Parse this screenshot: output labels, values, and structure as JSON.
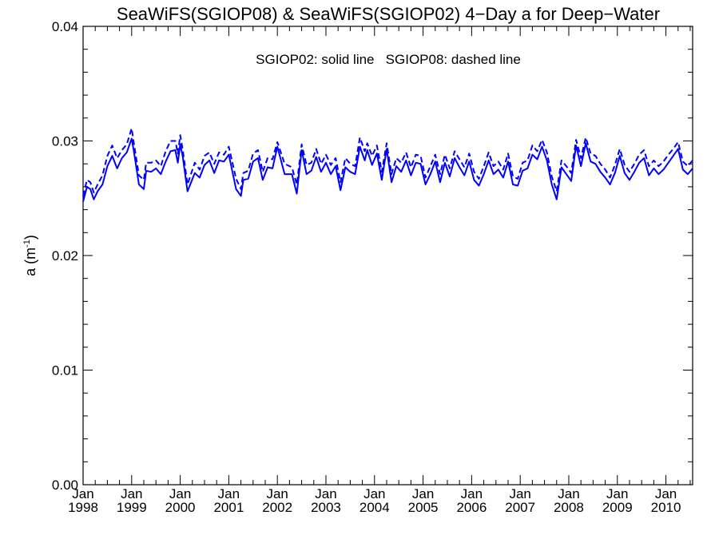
{
  "chart_data": {
    "type": "line",
    "title": "SeaWiFS(SGIOP08) & SeaWiFS(SGIOP02) 4−Day a for Deep−Water",
    "ylabel_base": "a (m",
    "ylabel_sup": "-1",
    "ylabel_close": ")",
    "xlabel": "",
    "annotation": "SGIOP02: solid line   SGIOP08: dashed line",
    "xlim": [
      1998.0,
      2010.55
    ],
    "ylim": [
      0.0,
      0.04
    ],
    "y_ticks": [
      {
        "value": 0.0,
        "label": "0.00"
      },
      {
        "value": 0.01,
        "label": "0.01"
      },
      {
        "value": 0.02,
        "label": "0.02"
      },
      {
        "value": 0.03,
        "label": "0.03"
      },
      {
        "value": 0.04,
        "label": "0.04"
      }
    ],
    "x_ticks": [
      {
        "value": 1998,
        "label1": "Jan",
        "label2": "1998"
      },
      {
        "value": 1999,
        "label1": "Jan",
        "label2": "1999"
      },
      {
        "value": 2000,
        "label1": "Jan",
        "label2": "2000"
      },
      {
        "value": 2001,
        "label1": "Jan",
        "label2": "2001"
      },
      {
        "value": 2002,
        "label1": "Jan",
        "label2": "2002"
      },
      {
        "value": 2003,
        "label1": "Jan",
        "label2": "2003"
      },
      {
        "value": 2004,
        "label1": "Jan",
        "label2": "2004"
      },
      {
        "value": 2005,
        "label1": "Jan",
        "label2": "2005"
      },
      {
        "value": 2006,
        "label1": "Jan",
        "label2": "2006"
      },
      {
        "value": 2007,
        "label1": "Jan",
        "label2": "2007"
      },
      {
        "value": 2008,
        "label1": "Jan",
        "label2": "2008"
      },
      {
        "value": 2009,
        "label1": "Jan",
        "label2": "2009"
      },
      {
        "value": 2010,
        "label1": "Jan",
        "label2": "2010"
      }
    ],
    "line_color": "#0000ff",
    "series": [
      {
        "style": "solid",
        "x": [
          1998.0,
          1998.08,
          1998.15,
          1998.22,
          1998.3,
          1998.4,
          1998.5,
          1998.6,
          1998.7,
          1998.8,
          1998.9,
          1999.0,
          1999.05,
          1999.15,
          1999.25,
          1999.3,
          1999.4,
          1999.5,
          1999.6,
          1999.7,
          1999.8,
          1999.9,
          1999.95,
          2000.0,
          2000.05,
          2000.15,
          2000.3,
          2000.4,
          2000.5,
          2000.6,
          2000.7,
          2000.8,
          2000.9,
          2001.0,
          2001.15,
          2001.25,
          2001.3,
          2001.4,
          2001.5,
          2001.6,
          2001.7,
          2001.8,
          2001.9,
          2002.0,
          2002.15,
          2002.3,
          2002.4,
          2002.5,
          2002.6,
          2002.7,
          2002.8,
          2002.9,
          2003.0,
          2003.1,
          2003.2,
          2003.3,
          2003.4,
          2003.5,
          2003.6,
          2003.7,
          2003.8,
          2003.85,
          2003.95,
          2004.05,
          2004.15,
          2004.25,
          2004.35,
          2004.45,
          2004.55,
          2004.65,
          2004.75,
          2004.85,
          2004.95,
          2005.05,
          2005.15,
          2005.25,
          2005.35,
          2005.45,
          2005.55,
          2005.65,
          2005.75,
          2005.85,
          2005.95,
          2006.05,
          2006.15,
          2006.25,
          2006.35,
          2006.45,
          2006.55,
          2006.65,
          2006.75,
          2006.85,
          2006.95,
          2007.05,
          2007.15,
          2007.25,
          2007.35,
          2007.45,
          2007.55,
          2007.65,
          2007.75,
          2007.85,
          2007.95,
          2008.05,
          2008.15,
          2008.25,
          2008.35,
          2008.45,
          2008.55,
          2008.65,
          2008.75,
          2008.85,
          2008.95,
          2009.05,
          2009.15,
          2009.25,
          2009.35,
          2009.45,
          2009.55,
          2009.65,
          2009.75,
          2009.85,
          2009.95,
          2010.05,
          2010.15,
          2010.25,
          2010.35,
          2010.45,
          2010.55
        ],
        "y": [
          0.0247,
          0.026,
          0.0258,
          0.0249,
          0.0256,
          0.0262,
          0.0278,
          0.0287,
          0.0276,
          0.0285,
          0.029,
          0.0302,
          0.029,
          0.0262,
          0.0258,
          0.0274,
          0.0273,
          0.0276,
          0.0271,
          0.0282,
          0.0291,
          0.0292,
          0.0281,
          0.0297,
          0.0287,
          0.0256,
          0.0272,
          0.0268,
          0.0279,
          0.0283,
          0.0272,
          0.0283,
          0.0282,
          0.0288,
          0.0258,
          0.0252,
          0.0266,
          0.0267,
          0.0282,
          0.0285,
          0.0266,
          0.0277,
          0.0276,
          0.0295,
          0.0271,
          0.0271,
          0.0254,
          0.0292,
          0.0271,
          0.0274,
          0.0286,
          0.0273,
          0.0281,
          0.0271,
          0.0278,
          0.0257,
          0.0277,
          0.0273,
          0.0271,
          0.0295,
          0.0283,
          0.0292,
          0.0279,
          0.0289,
          0.0266,
          0.0293,
          0.0264,
          0.0278,
          0.0273,
          0.0283,
          0.027,
          0.0281,
          0.028,
          0.0262,
          0.0271,
          0.0282,
          0.0264,
          0.0281,
          0.0269,
          0.0285,
          0.0277,
          0.027,
          0.0282,
          0.0266,
          0.0261,
          0.0271,
          0.0283,
          0.0271,
          0.0275,
          0.0268,
          0.0282,
          0.0262,
          0.0261,
          0.0274,
          0.0276,
          0.0288,
          0.0284,
          0.0295,
          0.0283,
          0.0262,
          0.0249,
          0.0277,
          0.0271,
          0.0265,
          0.0296,
          0.0278,
          0.0298,
          0.0282,
          0.028,
          0.0273,
          0.0268,
          0.0262,
          0.0272,
          0.0287,
          0.0272,
          0.0266,
          0.0273,
          0.0281,
          0.0285,
          0.027,
          0.0276,
          0.0271,
          0.0275,
          0.0281,
          0.0287,
          0.0293,
          0.0275,
          0.0271,
          0.0276
        ],
        "x_note": "x values in decimal years"
      },
      {
        "style": "dashed",
        "x": [
          1998.0,
          1998.08,
          1998.15,
          1998.22,
          1998.3,
          1998.4,
          1998.5,
          1998.6,
          1998.7,
          1998.8,
          1998.9,
          1999.0,
          1999.05,
          1999.15,
          1999.25,
          1999.3,
          1999.4,
          1999.5,
          1999.6,
          1999.7,
          1999.8,
          1999.9,
          1999.95,
          2000.0,
          2000.05,
          2000.15,
          2000.3,
          2000.4,
          2000.5,
          2000.6,
          2000.7,
          2000.8,
          2000.9,
          2001.0,
          2001.15,
          2001.25,
          2001.3,
          2001.4,
          2001.5,
          2001.6,
          2001.7,
          2001.8,
          2001.9,
          2002.0,
          2002.15,
          2002.3,
          2002.4,
          2002.5,
          2002.6,
          2002.7,
          2002.8,
          2002.9,
          2003.0,
          2003.1,
          2003.2,
          2003.3,
          2003.4,
          2003.5,
          2003.6,
          2003.7,
          2003.8,
          2003.85,
          2003.95,
          2004.05,
          2004.15,
          2004.25,
          2004.35,
          2004.45,
          2004.55,
          2004.65,
          2004.75,
          2004.85,
          2004.95,
          2005.05,
          2005.15,
          2005.25,
          2005.35,
          2005.45,
          2005.55,
          2005.65,
          2005.75,
          2005.85,
          2005.95,
          2006.05,
          2006.15,
          2006.25,
          2006.35,
          2006.45,
          2006.55,
          2006.65,
          2006.75,
          2006.85,
          2006.95,
          2007.05,
          2007.15,
          2007.25,
          2007.35,
          2007.45,
          2007.55,
          2007.65,
          2007.75,
          2007.85,
          2007.95,
          2008.05,
          2008.15,
          2008.25,
          2008.35,
          2008.45,
          2008.55,
          2008.65,
          2008.75,
          2008.85,
          2008.95,
          2009.05,
          2009.15,
          2009.25,
          2009.35,
          2009.45,
          2009.55,
          2009.65,
          2009.75,
          2009.85,
          2009.95,
          2010.05,
          2010.15,
          2010.25,
          2010.35,
          2010.45,
          2010.55
        ],
        "y": [
          0.0252,
          0.0266,
          0.0264,
          0.0255,
          0.0262,
          0.027,
          0.0287,
          0.0296,
          0.0285,
          0.0292,
          0.0297,
          0.0311,
          0.0297,
          0.027,
          0.0266,
          0.0281,
          0.0281,
          0.0283,
          0.0278,
          0.0291,
          0.03,
          0.03,
          0.0289,
          0.0305,
          0.0293,
          0.0262,
          0.0281,
          0.0275,
          0.0287,
          0.029,
          0.028,
          0.029,
          0.0288,
          0.0295,
          0.0267,
          0.0258,
          0.0272,
          0.0274,
          0.0289,
          0.0292,
          0.0273,
          0.0285,
          0.0284,
          0.0299,
          0.028,
          0.0277,
          0.0262,
          0.0297,
          0.0279,
          0.0281,
          0.0293,
          0.028,
          0.0288,
          0.0279,
          0.0285,
          0.0264,
          0.0285,
          0.028,
          0.0278,
          0.0303,
          0.0291,
          0.0298,
          0.0287,
          0.0296,
          0.0273,
          0.0298,
          0.0271,
          0.0285,
          0.0281,
          0.029,
          0.0277,
          0.0288,
          0.0287,
          0.0268,
          0.0278,
          0.0288,
          0.0271,
          0.0288,
          0.0276,
          0.0291,
          0.0284,
          0.0277,
          0.0289,
          0.0273,
          0.0267,
          0.0278,
          0.029,
          0.0278,
          0.0282,
          0.0275,
          0.0289,
          0.0269,
          0.0267,
          0.0281,
          0.0283,
          0.0296,
          0.0291,
          0.0301,
          0.029,
          0.0269,
          0.0256,
          0.0283,
          0.0278,
          0.0272,
          0.0301,
          0.0285,
          0.0303,
          0.0289,
          0.0287,
          0.028,
          0.0275,
          0.0268,
          0.0279,
          0.0293,
          0.0279,
          0.0273,
          0.028,
          0.0288,
          0.0292,
          0.0278,
          0.0283,
          0.0278,
          0.0282,
          0.0288,
          0.0293,
          0.0299,
          0.0282,
          0.0278,
          0.0283
        ]
      }
    ]
  }
}
